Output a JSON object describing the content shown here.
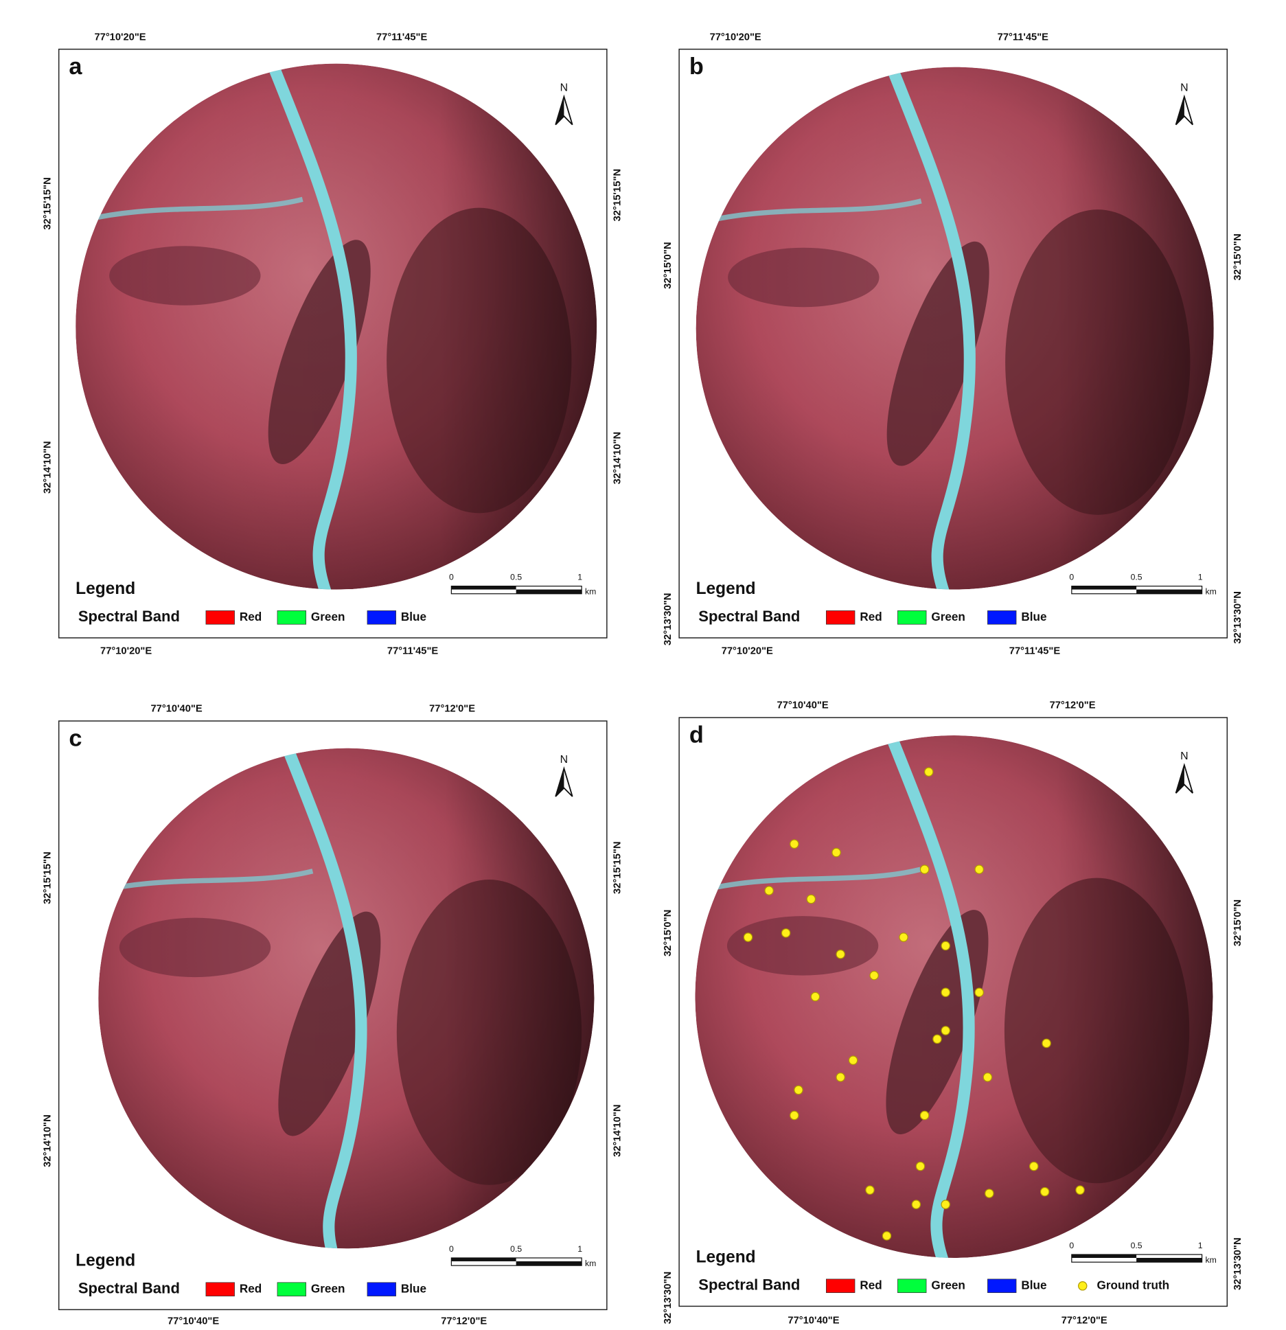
{
  "panels": [
    {
      "letter": "a",
      "top_labels": [
        "77°10'20\"E",
        "77°11'45\"E"
      ],
      "bottom_labels": [
        "77°10'20\"E",
        "77°11'45\"E"
      ],
      "left_labels": [
        "32°15'15\"N",
        "32°14'10\"N"
      ],
      "right_labels": [
        "32°15'15\"N",
        "32°14'10\"N"
      ],
      "north": "N",
      "legend_title": "Legend",
      "band_label": "Spectral Band",
      "legend_items": [
        "Red",
        "Green",
        "Blue"
      ],
      "scale_labels": [
        "0",
        "0.5",
        "1"
      ],
      "scale_unit": "km"
    },
    {
      "letter": "b",
      "top_labels": [
        "77°10'20\"E",
        "77°11'45\"E"
      ],
      "bottom_labels": [
        "77°10'20\"E",
        "77°11'45\"E"
      ],
      "left_labels": [
        "32°15'0\"N",
        "32°13'30\"N"
      ],
      "right_labels": [
        "32°15'0\"N",
        "32°13'30\"N"
      ],
      "north": "N",
      "legend_title": "Legend",
      "band_label": "Spectral Band",
      "legend_items": [
        "Red",
        "Green",
        "Blue"
      ],
      "scale_labels": [
        "0",
        "0.5",
        "1"
      ],
      "scale_unit": "km"
    },
    {
      "letter": "c",
      "top_labels": [
        "77°10'40\"E",
        "77°12'0\"E"
      ],
      "bottom_labels": [
        "77°10'40\"E",
        "77°12'0\"E"
      ],
      "left_labels": [
        "32°15'15\"N",
        "32°14'10\"N"
      ],
      "right_labels": [
        "32°15'15\"N",
        "32°14'10\"N"
      ],
      "north": "N",
      "legend_title": "Legend",
      "band_label": "Spectral Band",
      "legend_items": [
        "Red",
        "Green",
        "Blue"
      ],
      "scale_labels": [
        "0",
        "0.5",
        "1"
      ],
      "scale_unit": "km"
    },
    {
      "letter": "d",
      "top_labels": [
        "77°10'40\"E",
        "77°12'0\"E"
      ],
      "bottom_labels": [
        "77°10'40\"E",
        "77°12'0\"E"
      ],
      "left_labels": [
        "32°15'0\"N",
        "32°13'30\"N"
      ],
      "right_labels": [
        "32°15'0\"N",
        "32°13'30\"N"
      ],
      "north": "N",
      "legend_title": "Legend",
      "band_label": "Spectral Band",
      "legend_items": [
        "Red",
        "Green",
        "Blue",
        "Ground truth"
      ],
      "scale_labels": [
        "0",
        "0.5",
        "1"
      ],
      "scale_unit": "km"
    }
  ]
}
